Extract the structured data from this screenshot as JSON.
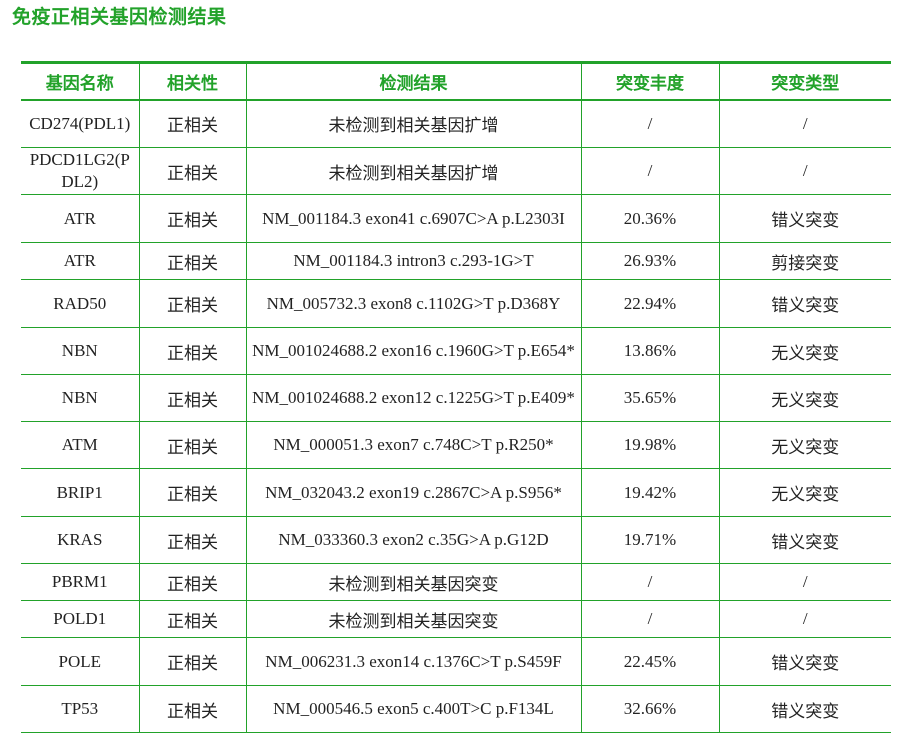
{
  "page_title": "免疫正相关基因检测结果",
  "headers": [
    "基因名称",
    "相关性",
    "检测结果",
    "突变丰度",
    "突变类型"
  ],
  "rows": [
    {
      "gene": "CD274(PDL1)",
      "relevance": "正相关",
      "result": "未检测到相关基因扩增",
      "abundance": "/",
      "type": "/"
    },
    {
      "gene": "PDCD1LG2(PDL2)",
      "relevance": "正相关",
      "result": "未检测到相关基因扩增",
      "abundance": "/",
      "type": "/"
    },
    {
      "gene": "ATR",
      "relevance": "正相关",
      "result": "NM_001184.3 exon41 c.6907C>A p.L2303I",
      "abundance": "20.36%",
      "type": "错义突变"
    },
    {
      "gene": "ATR",
      "relevance": "正相关",
      "result": "NM_001184.3 intron3 c.293-1G>T",
      "abundance": "26.93%",
      "type": "剪接突变"
    },
    {
      "gene": "RAD50",
      "relevance": "正相关",
      "result": "NM_005732.3 exon8 c.1102G>T p.D368Y",
      "abundance": "22.94%",
      "type": "错义突变"
    },
    {
      "gene": "NBN",
      "relevance": "正相关",
      "result": "NM_001024688.2 exon16 c.1960G>T p.E654*",
      "abundance": "13.86%",
      "type": "无义突变"
    },
    {
      "gene": "NBN",
      "relevance": "正相关",
      "result": "NM_001024688.2 exon12 c.1225G>T p.E409*",
      "abundance": "35.65%",
      "type": "无义突变"
    },
    {
      "gene": "ATM",
      "relevance": "正相关",
      "result": "NM_000051.3 exon7 c.748C>T p.R250*",
      "abundance": "19.98%",
      "type": "无义突变"
    },
    {
      "gene": "BRIP1",
      "relevance": "正相关",
      "result": "NM_032043.2 exon19 c.2867C>A p.S956*",
      "abundance": "19.42%",
      "type": "无义突变"
    },
    {
      "gene": "KRAS",
      "relevance": "正相关",
      "result": "NM_033360.3 exon2 c.35G>A p.G12D",
      "abundance": "19.71%",
      "type": "错义突变"
    },
    {
      "gene": "PBRM1",
      "relevance": "正相关",
      "result": "未检测到相关基因突变",
      "abundance": "/",
      "type": "/"
    },
    {
      "gene": "POLD1",
      "relevance": "正相关",
      "result": "未检测到相关基因突变",
      "abundance": "/",
      "type": "/"
    },
    {
      "gene": "POLE",
      "relevance": "正相关",
      "result": "NM_006231.3 exon14 c.1376C>T p.S459F",
      "abundance": "22.45%",
      "type": "错义突变"
    },
    {
      "gene": "TP53",
      "relevance": "正相关",
      "result": "NM_000546.5 exon5 c.400T>C p.F134L",
      "abundance": "32.66%",
      "type": "错义突变"
    }
  ],
  "colors": {
    "accent": "#22a22a",
    "text": "#222222"
  }
}
